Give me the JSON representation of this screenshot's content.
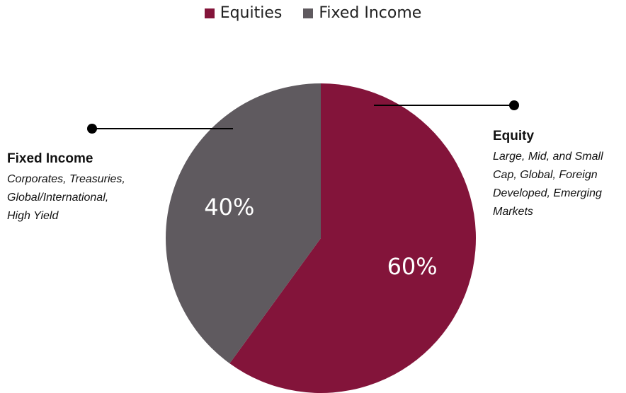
{
  "legend": [
    {
      "label": "Equities",
      "color": "#83143a"
    },
    {
      "label": "Fixed Income",
      "color": "#5f5a5f"
    }
  ],
  "chart_data": {
    "type": "pie",
    "categories": [
      "Equities",
      "Fixed Income"
    ],
    "values": [
      60,
      40
    ],
    "colors": [
      "#83143a",
      "#5f5a5f"
    ],
    "data_labels": [
      "60%",
      "40%"
    ]
  },
  "callouts": {
    "fixed_income": {
      "title": "Fixed Income",
      "lines": [
        "Corporates, Treasuries,",
        "Global/International,",
        "High Yield"
      ]
    },
    "equity": {
      "title": "Equity",
      "lines": [
        "Large, Mid, and Small",
        "Cap, Global, Foreign",
        "Developed, Emerging",
        "Markets"
      ]
    }
  }
}
